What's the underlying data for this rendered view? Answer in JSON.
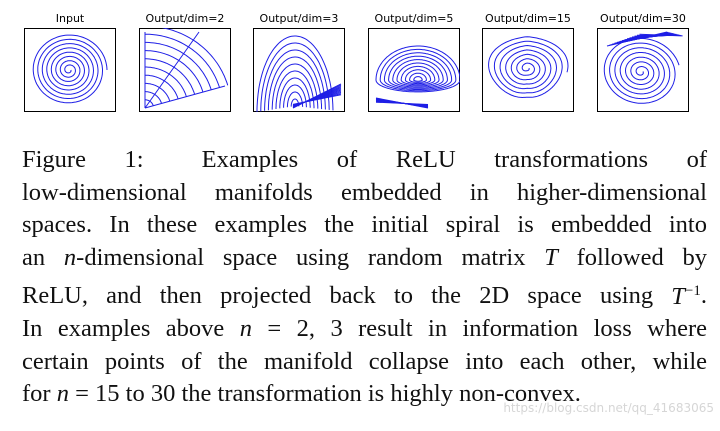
{
  "figure": {
    "panels": [
      {
        "title": "Input",
        "shape": "spiral"
      },
      {
        "title": "Output/dim=2",
        "shape": "fan"
      },
      {
        "title": "Output/dim=3",
        "shape": "dome"
      },
      {
        "title": "Output/dim=5",
        "shape": "lens"
      },
      {
        "title": "Output/dim=15",
        "shape": "triangle-spiral"
      },
      {
        "title": "Output/dim=30",
        "shape": "skew-spiral"
      }
    ],
    "line_color": "#1f1fe6"
  },
  "caption": {
    "label": "Figure 1:",
    "l1": "Examples of ReLU transformations of",
    "l2": "low-dimensional manifolds embedded in higher-dimensional",
    "l3": "spaces.  In these examples the initial spiral is embedded into",
    "l4a": "an ",
    "n": "n",
    "l4b": "-dimensional space using random matrix ",
    "T": "T",
    "l4c": " followed by",
    "l5a": "ReLU, and then projected back to the 2D space using ",
    "l5b": "T",
    "l5sup": "−1",
    "l5c": ".",
    "l6a": "In examples above ",
    "l6b": " = 2, 3 result in information loss where",
    "l7": "certain points of the manifold collapse into each other, while",
    "l8a": "for ",
    "l8b": " = 15 to 30 the transformation is highly non-convex."
  },
  "watermark": "https://blog.csdn.net/qq_41683065"
}
